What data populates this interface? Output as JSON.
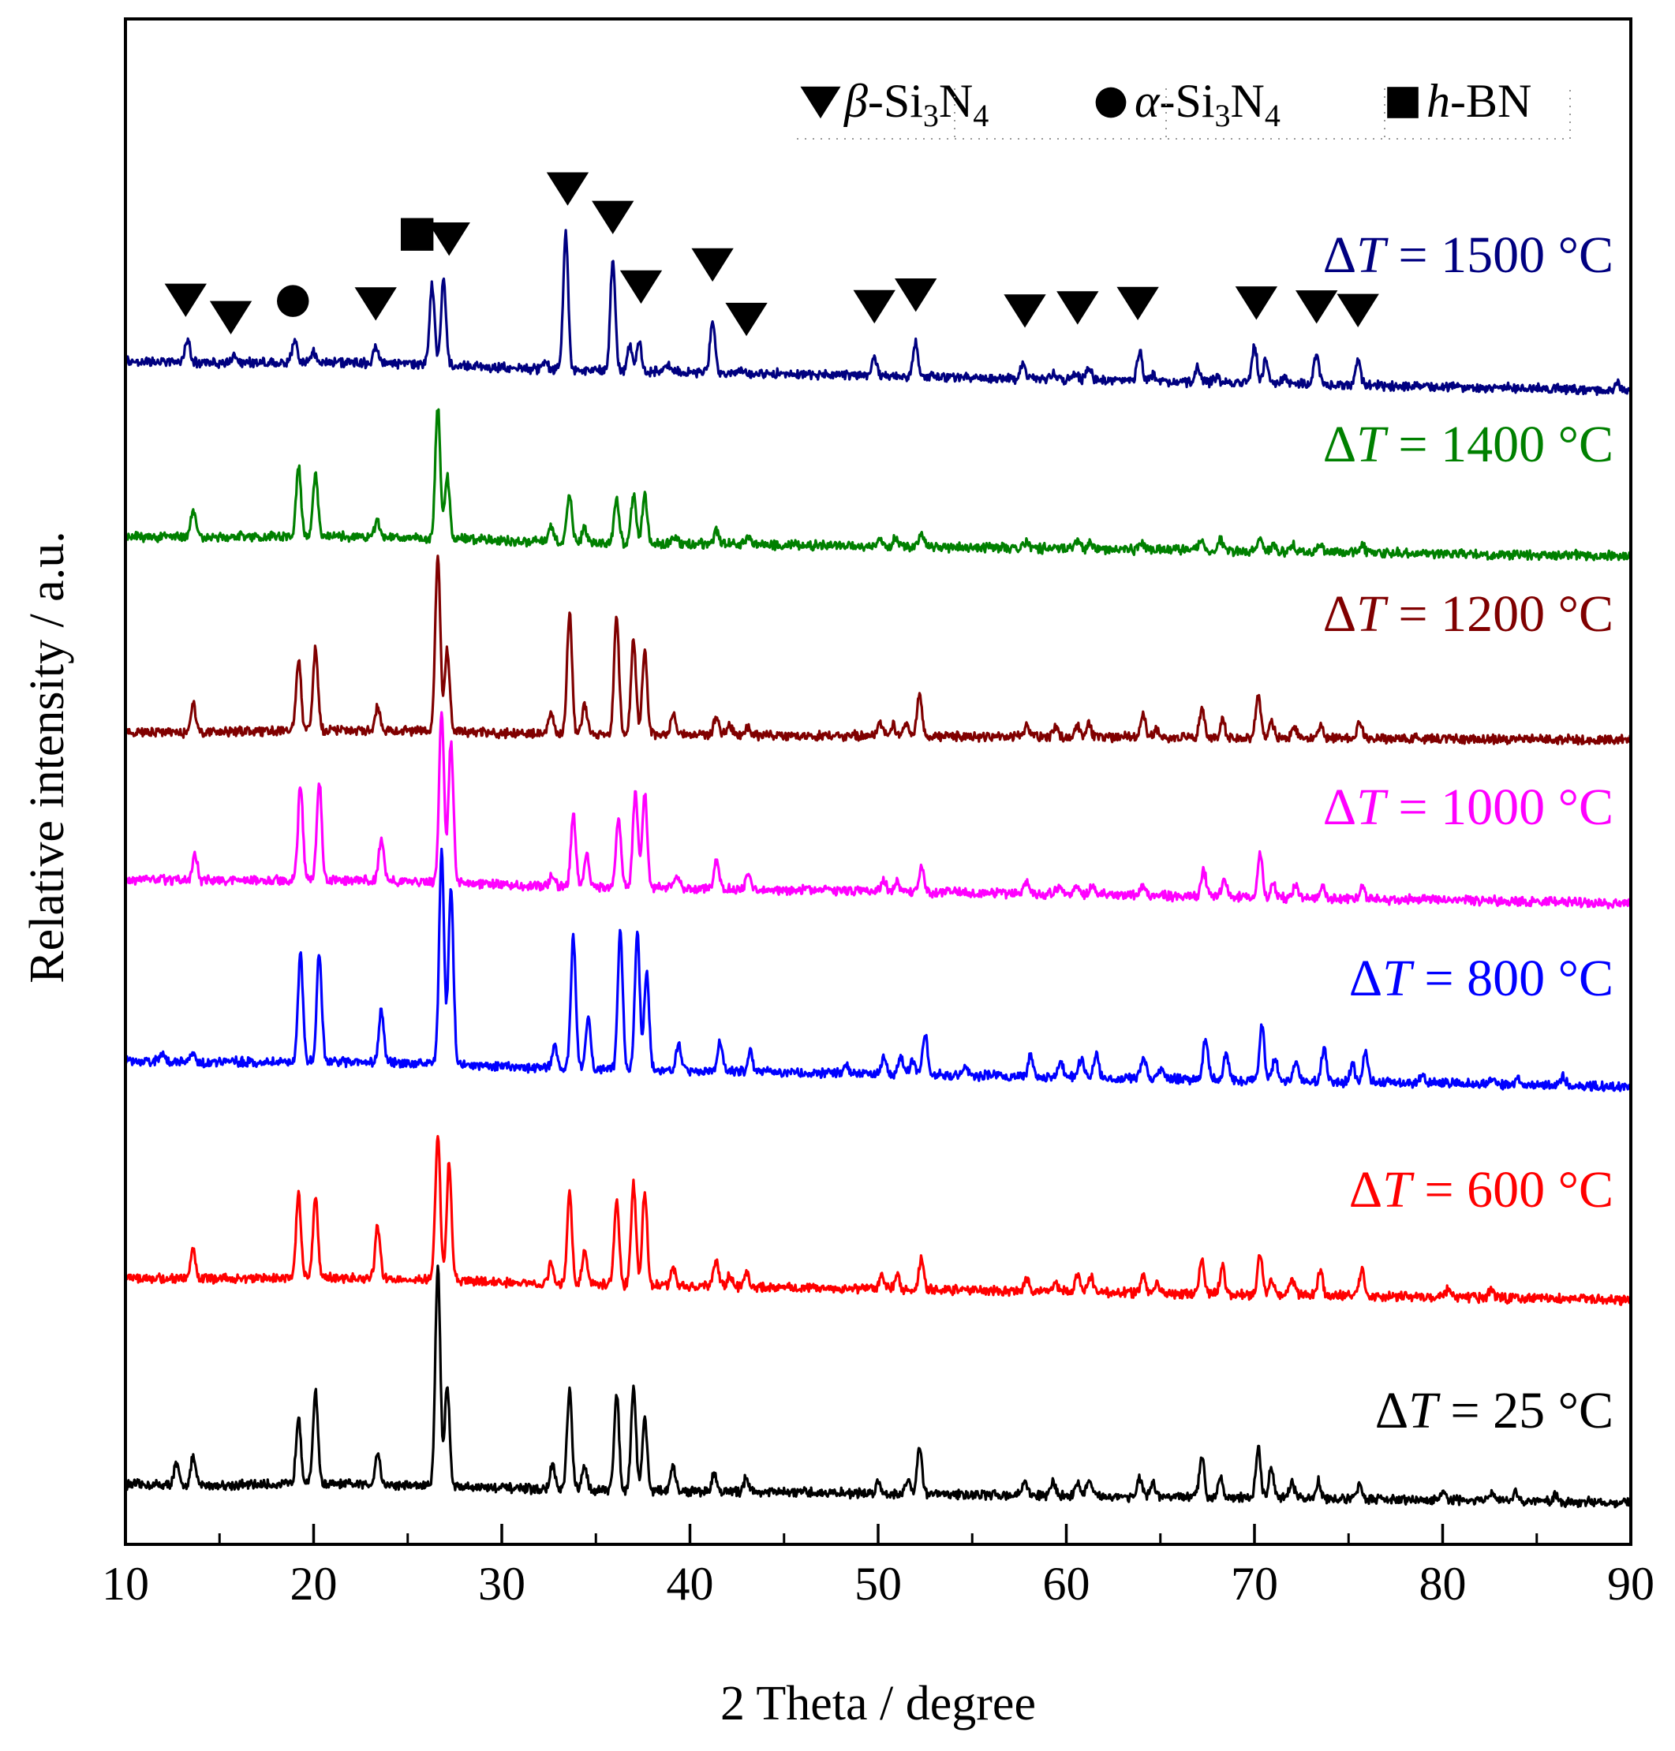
{
  "chart_data": {
    "type": "line",
    "xlabel": "2 Theta / degree",
    "ylabel": "Relative intensity / a.u.",
    "xlim": [
      10,
      90
    ],
    "x_ticks": [
      10,
      20,
      30,
      40,
      50,
      60,
      70,
      80,
      90
    ],
    "grid": false,
    "y_ticks_shown": false,
    "legend": {
      "placement": "top-right",
      "entries": [
        {
          "marker": "triangle-down",
          "phase": "β",
          "formula": "Si",
          "sub1": "3",
          "mid": "N",
          "sub2": "4"
        },
        {
          "marker": "circle",
          "phase": "α",
          "formula": "Si",
          "sub1": "3",
          "mid": "N",
          "sub2": "4"
        },
        {
          "marker": "square",
          "phase": "h",
          "formula": "BN",
          "sub1": "",
          "mid": "",
          "sub2": ""
        }
      ]
    },
    "series": [
      {
        "name": "ΔT = 25 °C",
        "color": "#000000",
        "tight": 0.55,
        "peaks": [
          [
            12.7,
            0.15
          ],
          [
            13.6,
            0.2
          ],
          [
            19.2,
            0.5
          ],
          [
            20.1,
            0.68
          ],
          [
            23.4,
            0.24
          ],
          [
            26.6,
            1.6
          ],
          [
            27.1,
            0.72
          ],
          [
            32.7,
            0.18
          ],
          [
            33.6,
            0.72
          ],
          [
            34.4,
            0.17
          ],
          [
            36.1,
            0.7
          ],
          [
            37.0,
            0.75
          ],
          [
            37.6,
            0.52
          ],
          [
            39.1,
            0.17
          ],
          [
            41.3,
            0.13
          ],
          [
            43.0,
            0.11
          ],
          [
            50.0,
            0.08
          ],
          [
            51.6,
            0.1
          ],
          [
            52.2,
            0.35
          ],
          [
            57.8,
            0.11
          ],
          [
            59.3,
            0.1
          ],
          [
            60.6,
            0.1
          ],
          [
            61.2,
            0.11
          ],
          [
            63.9,
            0.13
          ],
          [
            64.6,
            0.09
          ],
          [
            67.2,
            0.3
          ],
          [
            68.2,
            0.16
          ],
          [
            70.2,
            0.36
          ],
          [
            70.9,
            0.22
          ],
          [
            72.0,
            0.12
          ],
          [
            73.4,
            0.13
          ],
          [
            75.6,
            0.12
          ],
          [
            80.0,
            0.06
          ],
          [
            82.6,
            0.06
          ],
          [
            83.9,
            0.06
          ],
          [
            86.0,
            0.05
          ]
        ]
      },
      {
        "name": "ΔT = 600 °C",
        "color": "#ff0000",
        "tight": 0.35,
        "peaks": [
          [
            13.6,
            0.22
          ],
          [
            19.2,
            0.62
          ],
          [
            20.1,
            0.6
          ],
          [
            23.4,
            0.38
          ],
          [
            26.6,
            1.05
          ],
          [
            27.2,
            0.85
          ],
          [
            32.6,
            0.15
          ],
          [
            33.6,
            0.65
          ],
          [
            34.4,
            0.25
          ],
          [
            36.1,
            0.62
          ],
          [
            37.0,
            0.73
          ],
          [
            37.6,
            0.68
          ],
          [
            39.1,
            0.13
          ],
          [
            41.4,
            0.18
          ],
          [
            42.1,
            0.08
          ],
          [
            43.0,
            0.1
          ],
          [
            50.2,
            0.11
          ],
          [
            51.0,
            0.1
          ],
          [
            52.3,
            0.22
          ],
          [
            57.9,
            0.09
          ],
          [
            59.4,
            0.07
          ],
          [
            60.6,
            0.12
          ],
          [
            61.3,
            0.11
          ],
          [
            64.1,
            0.11
          ],
          [
            64.8,
            0.07
          ],
          [
            67.2,
            0.23
          ],
          [
            68.3,
            0.2
          ],
          [
            70.3,
            0.3
          ],
          [
            70.9,
            0.12
          ],
          [
            72.0,
            0.12
          ],
          [
            73.5,
            0.18
          ],
          [
            75.7,
            0.2
          ],
          [
            80.3,
            0.06
          ],
          [
            82.6,
            0.06
          ]
        ]
      },
      {
        "name": "ΔT = 800 °C",
        "color": "#0000ff",
        "tight": 0.5,
        "peaks": [
          [
            12.0,
            0.06
          ],
          [
            13.6,
            0.06
          ],
          [
            19.3,
            0.78
          ],
          [
            20.3,
            0.8
          ],
          [
            23.6,
            0.38
          ],
          [
            26.8,
            1.55
          ],
          [
            27.3,
            1.3
          ],
          [
            32.8,
            0.18
          ],
          [
            33.8,
            0.95
          ],
          [
            34.6,
            0.35
          ],
          [
            36.3,
            1.0
          ],
          [
            37.2,
            1.0
          ],
          [
            37.7,
            0.7
          ],
          [
            39.4,
            0.2
          ],
          [
            41.6,
            0.2
          ],
          [
            43.2,
            0.15
          ],
          [
            48.3,
            0.05
          ],
          [
            50.3,
            0.12
          ],
          [
            51.2,
            0.12
          ],
          [
            51.8,
            0.1
          ],
          [
            52.5,
            0.3
          ],
          [
            54.6,
            0.07
          ],
          [
            58.1,
            0.16
          ],
          [
            59.7,
            0.1
          ],
          [
            60.8,
            0.14
          ],
          [
            61.6,
            0.18
          ],
          [
            64.1,
            0.17
          ],
          [
            65.0,
            0.08
          ],
          [
            67.4,
            0.3
          ],
          [
            68.5,
            0.18
          ],
          [
            70.4,
            0.4
          ],
          [
            71.1,
            0.16
          ],
          [
            72.2,
            0.16
          ],
          [
            73.7,
            0.25
          ],
          [
            75.2,
            0.13
          ],
          [
            75.9,
            0.23
          ],
          [
            78.9,
            0.05
          ],
          [
            82.7,
            0.05
          ],
          [
            84.0,
            0.05
          ],
          [
            86.4,
            0.06
          ]
        ]
      },
      {
        "name": "ΔT = 1000 °C",
        "color": "#ff00ff",
        "tight": 0.5,
        "peaks": [
          [
            13.7,
            0.2
          ],
          [
            19.3,
            0.68
          ],
          [
            20.3,
            0.72
          ],
          [
            23.6,
            0.3
          ],
          [
            26.8,
            1.25
          ],
          [
            27.3,
            1.02
          ],
          [
            32.7,
            0.08
          ],
          [
            33.8,
            0.52
          ],
          [
            34.5,
            0.23
          ],
          [
            36.2,
            0.5
          ],
          [
            37.1,
            0.7
          ],
          [
            37.6,
            0.68
          ],
          [
            39.3,
            0.1
          ],
          [
            41.4,
            0.2
          ],
          [
            43.1,
            0.1
          ],
          [
            50.3,
            0.07
          ],
          [
            51.0,
            0.07
          ],
          [
            52.3,
            0.18
          ],
          [
            57.9,
            0.08
          ],
          [
            59.6,
            0.06
          ],
          [
            60.6,
            0.07
          ],
          [
            61.4,
            0.07
          ],
          [
            64.1,
            0.08
          ],
          [
            67.3,
            0.18
          ],
          [
            68.4,
            0.14
          ],
          [
            70.3,
            0.32
          ],
          [
            71.0,
            0.1
          ],
          [
            72.2,
            0.1
          ],
          [
            73.6,
            0.09
          ],
          [
            75.7,
            0.09
          ]
        ]
      },
      {
        "name": "ΔT = 1200 °C",
        "color": "#800000",
        "tight": 0.32,
        "peaks": [
          [
            13.6,
            0.22
          ],
          [
            19.2,
            0.52
          ],
          [
            20.1,
            0.6
          ],
          [
            23.4,
            0.18
          ],
          [
            26.6,
            1.3
          ],
          [
            27.1,
            0.6
          ],
          [
            32.6,
            0.16
          ],
          [
            33.6,
            0.88
          ],
          [
            34.4,
            0.22
          ],
          [
            36.1,
            0.85
          ],
          [
            37.0,
            0.68
          ],
          [
            37.6,
            0.6
          ],
          [
            39.1,
            0.15
          ],
          [
            41.4,
            0.14
          ],
          [
            42.1,
            0.08
          ],
          [
            43.1,
            0.07
          ],
          [
            50.1,
            0.09
          ],
          [
            50.8,
            0.08
          ],
          [
            51.5,
            0.08
          ],
          [
            52.2,
            0.3
          ],
          [
            57.9,
            0.09
          ],
          [
            59.4,
            0.08
          ],
          [
            60.6,
            0.09
          ],
          [
            61.2,
            0.1
          ],
          [
            64.1,
            0.16
          ],
          [
            64.8,
            0.06
          ],
          [
            67.2,
            0.2
          ],
          [
            68.3,
            0.12
          ],
          [
            70.2,
            0.3
          ],
          [
            70.9,
            0.12
          ],
          [
            72.1,
            0.09
          ],
          [
            73.5,
            0.1
          ],
          [
            75.6,
            0.12
          ]
        ]
      },
      {
        "name": "ΔT = 1400 °C",
        "color": "#008000",
        "tight": 0.5,
        "peaks": [
          [
            13.6,
            0.18
          ],
          [
            19.2,
            0.5
          ],
          [
            20.1,
            0.45
          ],
          [
            23.4,
            0.12
          ],
          [
            26.6,
            0.95
          ],
          [
            27.1,
            0.45
          ],
          [
            32.6,
            0.12
          ],
          [
            33.6,
            0.35
          ],
          [
            34.4,
            0.1
          ],
          [
            36.1,
            0.32
          ],
          [
            37.0,
            0.35
          ],
          [
            37.6,
            0.35
          ],
          [
            39.2,
            0.05
          ],
          [
            41.4,
            0.1
          ],
          [
            43.1,
            0.06
          ],
          [
            50.1,
            0.05
          ],
          [
            50.9,
            0.05
          ],
          [
            52.3,
            0.1
          ],
          [
            57.9,
            0.05
          ],
          [
            60.6,
            0.06
          ],
          [
            61.3,
            0.05
          ],
          [
            64.0,
            0.05
          ],
          [
            67.2,
            0.08
          ],
          [
            68.2,
            0.08
          ],
          [
            70.3,
            0.1
          ],
          [
            71.0,
            0.05
          ],
          [
            72.0,
            0.05
          ],
          [
            73.5,
            0.05
          ],
          [
            75.7,
            0.06
          ]
        ]
      },
      {
        "name": "ΔT = 1500 °C",
        "color": "#000080",
        "tight": 0.5,
        "peaks": [
          [
            13.3,
            0.17
          ],
          [
            15.8,
            0.05
          ],
          [
            19.0,
            0.15
          ],
          [
            20.0,
            0.08
          ],
          [
            23.3,
            0.12
          ],
          [
            26.3,
            0.58
          ],
          [
            26.9,
            0.62
          ],
          [
            32.3,
            0.05
          ],
          [
            33.4,
            1.0
          ],
          [
            35.9,
            0.8
          ],
          [
            36.8,
            0.18
          ],
          [
            37.3,
            0.22
          ],
          [
            38.8,
            0.05
          ],
          [
            41.2,
            0.38
          ],
          [
            42.8,
            0.03
          ],
          [
            49.8,
            0.13
          ],
          [
            52.0,
            0.25
          ],
          [
            57.7,
            0.11
          ],
          [
            59.3,
            0.04
          ],
          [
            60.5,
            0.05
          ],
          [
            61.2,
            0.1
          ],
          [
            63.9,
            0.22
          ],
          [
            64.6,
            0.05
          ],
          [
            67.0,
            0.11
          ],
          [
            68.0,
            0.04
          ],
          [
            70.0,
            0.28
          ],
          [
            70.6,
            0.18
          ],
          [
            71.6,
            0.04
          ],
          [
            73.3,
            0.23
          ],
          [
            75.5,
            0.2
          ],
          [
            89.3,
            0.05
          ]
        ]
      }
    ],
    "annotations": [
      {
        "marker": "triangle-down",
        "x": 13.2,
        "above": 0.29
      },
      {
        "marker": "triangle-down",
        "x": 15.6,
        "above": 0.17
      },
      {
        "marker": "circle",
        "x": 18.9,
        "above": 0.3
      },
      {
        "marker": "triangle-down",
        "x": 23.3,
        "above": 0.29
      },
      {
        "marker": "square",
        "x": 25.5,
        "above": 0.8
      },
      {
        "marker": "triangle-down",
        "x": 27.2,
        "above": 0.77
      },
      {
        "marker": "triangle-down",
        "x": 33.5,
        "above": 1.15
      },
      {
        "marker": "triangle-down",
        "x": 35.9,
        "above": 0.95
      },
      {
        "marker": "triangle-down",
        "x": 37.4,
        "above": 0.45
      },
      {
        "marker": "triangle-down",
        "x": 41.2,
        "above": 0.62
      },
      {
        "marker": "triangle-down",
        "x": 43.0,
        "above": 0.23
      },
      {
        "marker": "triangle-down",
        "x": 49.8,
        "above": 0.34
      },
      {
        "marker": "triangle-down",
        "x": 52.0,
        "above": 0.43
      },
      {
        "marker": "triangle-down",
        "x": 57.8,
        "above": 0.33
      },
      {
        "marker": "triangle-down",
        "x": 60.6,
        "above": 0.36
      },
      {
        "marker": "triangle-down",
        "x": 63.8,
        "above": 0.4
      },
      {
        "marker": "triangle-down",
        "x": 70.1,
        "above": 0.42
      },
      {
        "marker": "triangle-down",
        "x": 73.3,
        "above": 0.4
      },
      {
        "marker": "triangle-down",
        "x": 75.5,
        "above": 0.38
      }
    ]
  }
}
